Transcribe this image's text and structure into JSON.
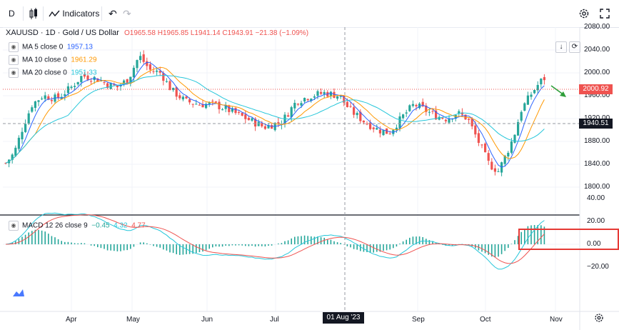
{
  "toolbar": {
    "interval": "D",
    "indicators_label": "Indicators",
    "undo_icon": "undo-icon",
    "redo_icon": "redo-icon"
  },
  "symbol": {
    "title": "XAUUSD · 1D · Gold / US Dollar",
    "ohlc": [
      {
        "k": "O",
        "v": "1965.58"
      },
      {
        "k": "H",
        "v": "1965.85"
      },
      {
        "k": "L",
        "v": "1941.14"
      },
      {
        "k": "C",
        "v": "1943.91"
      }
    ],
    "change": "−21.38 (−1.09%)"
  },
  "indicators": [
    {
      "name": "MA 5 close 0",
      "value": "1957.13",
      "color": "#2962ff"
    },
    {
      "name": "MA 10 close 0",
      "value": "1961.29",
      "color": "#ff9800"
    },
    {
      "name": "MA 20 close 0",
      "value": "1951.33",
      "color": "#26c6da"
    }
  ],
  "macd": {
    "name": "MACD 12 26 close 9",
    "values": [
      {
        "v": "−0.45",
        "color": "#26a69a"
      },
      {
        "v": "4.32",
        "color": "#26c6da"
      },
      {
        "v": "4.77",
        "color": "#ef5350"
      }
    ]
  },
  "price_axis": [
    "2080.00",
    "2040.00",
    "2000.00",
    "1960.00",
    "1920.00",
    "1880.00",
    "1840.00",
    "1800.00"
  ],
  "price_tags": [
    {
      "v": "2000.92",
      "color": "#ef5350"
    },
    {
      "v": "1940.51",
      "color": "#131722"
    }
  ],
  "macd_axis": [
    "40.00",
    "20.00",
    "0.00",
    "−20.00"
  ],
  "time_axis": [
    "Apr",
    "May",
    "Jun",
    "Jul",
    "Sep",
    "Oct",
    "Nov"
  ],
  "crosshair_date": "01 Aug '23",
  "colors": {
    "up": "#26a69a",
    "down": "#ef5350",
    "grid": "#f0f3fa",
    "annotation": "#e53935",
    "arrow": "#2e9e3a"
  }
}
